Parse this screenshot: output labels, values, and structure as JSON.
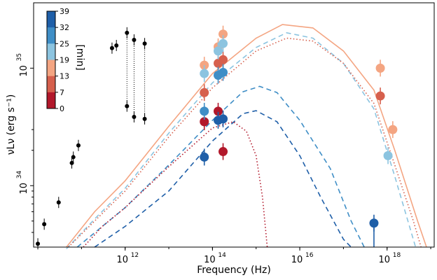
{
  "chart_data": {
    "type": "scatter",
    "title": "",
    "xlabel": "Frequency (Hz)",
    "ylabel": "νLν (erg s⁻¹)",
    "xscale": "log",
    "yscale": "log",
    "xlim": [
      8000000000.0,
      1.2e+19
    ],
    "ylim": [
      3e+33,
      3.6e+35
    ],
    "x_ticks": [
      {
        "value": 1000000000000.0,
        "base": "10",
        "exp": "12"
      },
      {
        "value": 100000000000000.0,
        "base": "10",
        "exp": "14"
      },
      {
        "value": 1e+16,
        "base": "10",
        "exp": "16"
      },
      {
        "value": 1e+18,
        "base": "10",
        "exp": "18"
      }
    ],
    "y_ticks": [
      {
        "value": 1e+34,
        "base": "10",
        "exp": "34"
      },
      {
        "value": 1e+35,
        "base": "10",
        "exp": "35"
      }
    ],
    "colorbar": {
      "label": "[min]",
      "ticks": [
        "39",
        "32",
        "25",
        "19",
        "13",
        "7",
        "0"
      ],
      "colors": [
        "#1f5fa8",
        "#3f8ec6",
        "#8cc4e0",
        "#f4a582",
        "#d6604d",
        "#b2182b"
      ]
    },
    "series": [
      {
        "role": "historical",
        "color": "#000000",
        "points": [
          {
            "x": 10000000000.0,
            "y": 3.2e+33
          },
          {
            "x": 14000000000.0,
            "y": 4.7e+33
          },
          {
            "x": 30000000000.0,
            "y": 7.2e+33
          },
          {
            "x": 60000000000.0,
            "y": 1.56e+34
          },
          {
            "x": 65000000000.0,
            "y": 1.75e+34
          },
          {
            "x": 85000000000.0,
            "y": 2.2e+34
          },
          {
            "x": 500000000000.0,
            "y": 1.48e+35
          },
          {
            "x": 630000000000.0,
            "y": 1.56e+35
          },
          {
            "x": 1100000000000.0,
            "y": 2e+35
          },
          {
            "x": 1100000000000.0,
            "y": 4.75e+34
          },
          {
            "x": 1600000000000.0,
            "y": 1.74e+35
          },
          {
            "x": 1600000000000.0,
            "y": 3.85e+34
          },
          {
            "x": 2800000000000.0,
            "y": 1.62e+35
          },
          {
            "x": 2800000000000.0,
            "y": 3.7e+34
          }
        ]
      },
      {
        "role": "minute-0",
        "color": "#b2182b",
        "points": [
          {
            "x": 65000000000000.0,
            "y": 3.5e+34
          },
          {
            "x": 135000000000000.0,
            "y": 4.3e+34
          },
          {
            "x": 175000000000000.0,
            "y": 1.95e+34
          }
        ]
      },
      {
        "role": "minute-7",
        "color": "#d6604d",
        "points": [
          {
            "x": 65000000000000.0,
            "y": 6.2e+34
          },
          {
            "x": 135000000000000.0,
            "y": 1.1e+35
          },
          {
            "x": 175000000000000.0,
            "y": 1.18e+35
          },
          {
            "x": 7e+17,
            "y": 5.8e+34
          }
        ]
      },
      {
        "role": "minute-13",
        "color": "#f4a582",
        "points": [
          {
            "x": 65000000000000.0,
            "y": 1.06e+35
          },
          {
            "x": 135000000000000.0,
            "y": 1.52e+35
          },
          {
            "x": 175000000000000.0,
            "y": 1.95e+35
          },
          {
            "x": 7e+17,
            "y": 1e+35
          },
          {
            "x": 1.35e+18,
            "y": 3e+34
          }
        ]
      },
      {
        "role": "minute-19",
        "color": "#8cc4e0",
        "points": [
          {
            "x": 65000000000000.0,
            "y": 9e+34
          },
          {
            "x": 135000000000000.0,
            "y": 1.4e+35
          },
          {
            "x": 175000000000000.0,
            "y": 1.62e+35
          },
          {
            "x": 1.05e+18,
            "y": 1.8e+34
          }
        ]
      },
      {
        "role": "minute-25",
        "color": "#3f8ec6",
        "points": [
          {
            "x": 65000000000000.0,
            "y": 4.3e+34
          },
          {
            "x": 135000000000000.0,
            "y": 8.7e+34
          },
          {
            "x": 175000000000000.0,
            "y": 9.2e+34
          }
        ]
      },
      {
        "role": "minute-32",
        "color": "#1f5fa8",
        "points": [
          {
            "x": 65000000000000.0,
            "y": 1.75e+34
          },
          {
            "x": 135000000000000.0,
            "y": 3.6e+34
          },
          {
            "x": 175000000000000.0,
            "y": 3.7e+34
          },
          {
            "x": 5e+17,
            "y": 4.8e+33
          }
        ]
      }
    ],
    "models": [
      {
        "style": "solid",
        "color": "#f4a582",
        "points": [
          [
            45000000000.0,
            3e+33
          ],
          [
            200000000000.0,
            6e+33
          ],
          [
            1000000000000.0,
            1.1e+34
          ],
          [
            10000000000000.0,
            3.2e+34
          ],
          [
            100000000000000.0,
            9e+34
          ],
          [
            1000000000000000.0,
            1.8e+35
          ],
          [
            4000000000000000.0,
            2.35e+35
          ],
          [
            2e+16,
            2.2e+35
          ],
          [
            1e+17,
            1.4e+35
          ],
          [
            5e+17,
            6.5e+34
          ],
          [
            1.5e+18,
            2e+34
          ],
          [
            5e+18,
            5e+33
          ],
          [
            8e+18,
            3e+33
          ]
        ]
      },
      {
        "style": "dashed",
        "color": "#8cc4e0",
        "points": [
          [
            45000000000.0,
            2.9e+33
          ],
          [
            200000000000.0,
            5.2e+33
          ],
          [
            1000000000000.0,
            9.5e+33
          ],
          [
            10000000000000.0,
            2.8e+34
          ],
          [
            100000000000000.0,
            7.5e+34
          ],
          [
            1000000000000000.0,
            1.5e+35
          ],
          [
            5000000000000000.0,
            2e+35
          ],
          [
            2e+16,
            1.8e+35
          ],
          [
            1e+17,
            1.1e+35
          ],
          [
            5e+17,
            4.5e+34
          ],
          [
            1.5e+18,
            1.2e+34
          ],
          [
            3e+18,
            5e+33
          ],
          [
            4.5e+18,
            3e+33
          ]
        ]
      },
      {
        "style": "dotted",
        "color": "#d6604d",
        "points": [
          [
            50000000000.0,
            3e+33
          ],
          [
            200000000000.0,
            5e+33
          ],
          [
            1000000000000.0,
            9e+33
          ],
          [
            10000000000000.0,
            2.6e+34
          ],
          [
            100000000000000.0,
            6.8e+34
          ],
          [
            1000000000000000.0,
            1.4e+35
          ],
          [
            5000000000000000.0,
            1.8e+35
          ],
          [
            2e+16,
            1.7e+35
          ],
          [
            1e+17,
            1.1e+35
          ],
          [
            5e+17,
            5e+34
          ],
          [
            1.5e+18,
            1.5e+34
          ],
          [
            4e+18,
            5e+33
          ],
          [
            6e+18,
            3e+33
          ]
        ]
      },
      {
        "style": "dashed",
        "color": "#3f8ec6",
        "points": [
          [
            80000000000.0,
            3e+33
          ],
          [
            300000000000.0,
            4.5e+33
          ],
          [
            1000000000000.0,
            6.5e+33
          ],
          [
            10000000000000.0,
            1.5e+34
          ],
          [
            100000000000000.0,
            3.6e+34
          ],
          [
            500000000000000.0,
            6.3e+34
          ],
          [
            1200000000000000.0,
            7e+34
          ],
          [
            3000000000000000.0,
            6.2e+34
          ],
          [
            1e+16,
            3.6e+34
          ],
          [
            5e+16,
            1.4e+34
          ],
          [
            1.5e+17,
            5e+33
          ],
          [
            3e+17,
            3e+33
          ]
        ]
      },
      {
        "style": "dashed",
        "color": "#1f5fa8",
        "points": [
          [
            200000000000.0,
            3e+33
          ],
          [
            1000000000000.0,
            4.5e+33
          ],
          [
            10000000000000.0,
            9e+33
          ],
          [
            100000000000000.0,
            2.4e+34
          ],
          [
            500000000000000.0,
            4.1e+34
          ],
          [
            1000000000000000.0,
            4.35e+34
          ],
          [
            3000000000000000.0,
            3.5e+34
          ],
          [
            1e+16,
            1.8e+34
          ],
          [
            3e+16,
            8e+33
          ],
          [
            1e+17,
            3.5e+33
          ],
          [
            1.5e+17,
            3e+33
          ]
        ]
      },
      {
        "style": "dotted",
        "color": "#b2182b",
        "points": [
          [
            110000000000.0,
            3e+33
          ],
          [
            300000000000.0,
            4.5e+33
          ],
          [
            1000000000000.0,
            6.5e+33
          ],
          [
            10000000000000.0,
            1.45e+34
          ],
          [
            100000000000000.0,
            3.1e+34
          ],
          [
            300000000000000.0,
            3.5e+34
          ],
          [
            600000000000000.0,
            2.9e+34
          ],
          [
            1000000000000000.0,
            1.8e+34
          ],
          [
            1400000000000000.0,
            8e+33
          ],
          [
            1800000000000000.0,
            3e+33
          ]
        ]
      }
    ]
  }
}
